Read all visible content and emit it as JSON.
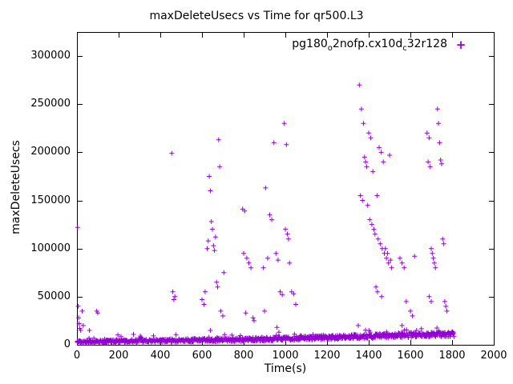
{
  "chart_data": {
    "type": "scatter",
    "title": "maxDeleteUsecs vs Time for qr500.L3",
    "xlabel": "Time(s)",
    "ylabel": "maxDeleteUsecs",
    "xlim": [
      0,
      2000
    ],
    "ylim": [
      0,
      325000
    ],
    "x_ticks": [
      0,
      200,
      400,
      600,
      800,
      1000,
      1200,
      1400,
      1600,
      1800,
      2000
    ],
    "y_ticks": [
      0,
      50000,
      100000,
      150000,
      200000,
      250000,
      300000
    ],
    "grid": false,
    "legend": {
      "position": "top-right",
      "marker": "+",
      "parts": [
        {
          "text": "pg180"
        },
        {
          "text": "o",
          "subscript": true
        },
        {
          "text": "2nofp.cx10d"
        },
        {
          "text": "c",
          "subscript": true
        },
        {
          "text": "32r128"
        }
      ]
    },
    "series": [
      {
        "name": "pg180_o2nofp.cx10d_c32r128",
        "color": "#9400d3",
        "marker": "plus",
        "outlier_points": [
          [
            3,
            122000
          ],
          [
            6,
            40000
          ],
          [
            8,
            28000
          ],
          [
            10,
            22000
          ],
          [
            14,
            17000
          ],
          [
            18,
            15000
          ],
          [
            25,
            35000
          ],
          [
            30,
            20000
          ],
          [
            60,
            15000
          ],
          [
            95,
            35000
          ],
          [
            100,
            33000
          ],
          [
            455,
            199000
          ],
          [
            460,
            55000
          ],
          [
            465,
            47000
          ],
          [
            470,
            50000
          ],
          [
            600,
            47000
          ],
          [
            610,
            42000
          ],
          [
            615,
            55000
          ],
          [
            625,
            100000
          ],
          [
            630,
            108000
          ],
          [
            635,
            175000
          ],
          [
            640,
            160000
          ],
          [
            645,
            128000
          ],
          [
            650,
            120000
          ],
          [
            655,
            103000
          ],
          [
            660,
            98000
          ],
          [
            665,
            112000
          ],
          [
            670,
            65000
          ],
          [
            675,
            60000
          ],
          [
            680,
            213000
          ],
          [
            685,
            185000
          ],
          [
            690,
            35000
          ],
          [
            700,
            30000
          ],
          [
            705,
            75000
          ],
          [
            640,
            15000
          ],
          [
            795,
            141000
          ],
          [
            805,
            139000
          ],
          [
            800,
            95000
          ],
          [
            815,
            90000
          ],
          [
            825,
            85000
          ],
          [
            835,
            80000
          ],
          [
            810,
            33000
          ],
          [
            845,
            28000
          ],
          [
            850,
            25000
          ],
          [
            895,
            80000
          ],
          [
            900,
            35000
          ],
          [
            905,
            163000
          ],
          [
            915,
            90000
          ],
          [
            925,
            135000
          ],
          [
            935,
            130000
          ],
          [
            945,
            210000
          ],
          [
            955,
            95000
          ],
          [
            960,
            18000
          ],
          [
            965,
            88000
          ],
          [
            975,
            55000
          ],
          [
            985,
            52000
          ],
          [
            995,
            230000
          ],
          [
            1000,
            120000
          ],
          [
            1005,
            208000
          ],
          [
            1010,
            115000
          ],
          [
            1015,
            110000
          ],
          [
            1020,
            85000
          ],
          [
            1030,
            55000
          ],
          [
            1040,
            53000
          ],
          [
            1050,
            42000
          ],
          [
            1350,
            20000
          ],
          [
            1355,
            270000
          ],
          [
            1360,
            155000
          ],
          [
            1365,
            245000
          ],
          [
            1370,
            150000
          ],
          [
            1375,
            230000
          ],
          [
            1380,
            195000
          ],
          [
            1385,
            190000
          ],
          [
            1390,
            185000
          ],
          [
            1395,
            145000
          ],
          [
            1400,
            220000
          ],
          [
            1405,
            130000
          ],
          [
            1410,
            215000
          ],
          [
            1415,
            125000
          ],
          [
            1420,
            180000
          ],
          [
            1425,
            120000
          ],
          [
            1430,
            115000
          ],
          [
            1435,
            60000
          ],
          [
            1440,
            155000
          ],
          [
            1445,
            110000
          ],
          [
            1450,
            205000
          ],
          [
            1455,
            105000
          ],
          [
            1460,
            200000
          ],
          [
            1465,
            100000
          ],
          [
            1470,
            190000
          ],
          [
            1475,
            95000
          ],
          [
            1480,
            100000
          ],
          [
            1485,
            90000
          ],
          [
            1490,
            95000
          ],
          [
            1495,
            85000
          ],
          [
            1500,
            197000
          ],
          [
            1505,
            88000
          ],
          [
            1510,
            80000
          ],
          [
            1442,
            55000
          ],
          [
            1462,
            50000
          ],
          [
            1550,
            90000
          ],
          [
            1560,
            85000
          ],
          [
            1570,
            80000
          ],
          [
            1560,
            20000
          ],
          [
            1580,
            45000
          ],
          [
            1600,
            35000
          ],
          [
            1610,
            30000
          ],
          [
            1620,
            92000
          ],
          [
            1630,
            15000
          ],
          [
            1680,
            220000
          ],
          [
            1690,
            215000
          ],
          [
            1685,
            190000
          ],
          [
            1695,
            185000
          ],
          [
            1690,
            50000
          ],
          [
            1700,
            100000
          ],
          [
            1700,
            45000
          ],
          [
            1705,
            95000
          ],
          [
            1710,
            90000
          ],
          [
            1715,
            85000
          ],
          [
            1720,
            80000
          ],
          [
            1730,
            245000
          ],
          [
            1735,
            230000
          ],
          [
            1740,
            210000
          ],
          [
            1745,
            192000
          ],
          [
            1750,
            188000
          ],
          [
            1755,
            110000
          ],
          [
            1760,
            105000
          ],
          [
            1765,
            45000
          ],
          [
            1770,
            40000
          ],
          [
            1775,
            35000
          ]
        ],
        "baseline_band": {
          "description": "dense band of routine samples rising slowly over time",
          "x_range": [
            0,
            1810
          ],
          "count": 900,
          "anchors": [
            [
              0,
              3000
            ],
            [
              200,
              3800
            ],
            [
              400,
              4300
            ],
            [
              600,
              4800
            ],
            [
              800,
              5500
            ],
            [
              1000,
              6500
            ],
            [
              1200,
              7500
            ],
            [
              1400,
              8800
            ],
            [
              1600,
              10000
            ],
            [
              1810,
              11200
            ]
          ],
          "jitter": [
            1400,
            2700
          ],
          "spike_chance": 0.04,
          "spike_max": 6000,
          "seed": 12345
        }
      }
    ]
  }
}
